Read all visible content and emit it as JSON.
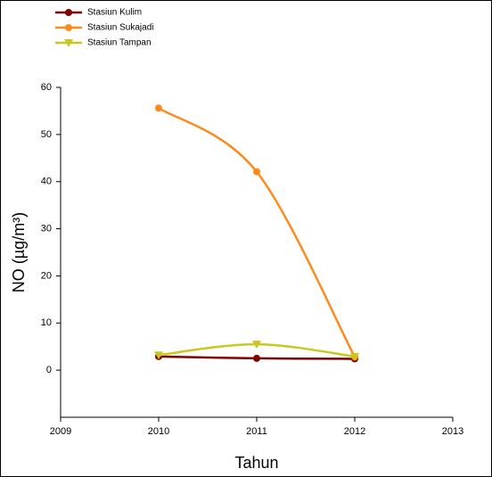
{
  "chart_data": {
    "type": "line",
    "y_label": "NO (µg/m³)",
    "x_label": "Tahun",
    "x": [
      2010,
      2011,
      2012
    ],
    "series": [
      {
        "name": "Stasiun Kulim",
        "color": "#800000",
        "marker": "circle",
        "values": [
          2.9,
          2.5,
          2.4
        ]
      },
      {
        "name": "Stasiun Sukajadi",
        "color": "#ff8a1c",
        "marker": "circle",
        "values": [
          55.6,
          42.1,
          2.8
        ]
      },
      {
        "name": "Stasiun Tampan",
        "color": "#c8c81e",
        "marker": "triangle-down",
        "values": [
          3.2,
          5.5,
          2.9
        ]
      }
    ],
    "xlim": [
      2009,
      2013
    ],
    "xticks": [
      2009,
      2010,
      2011,
      2012,
      2013
    ],
    "ylim": [
      -10,
      60
    ],
    "yticks": [
      0,
      10,
      20,
      30,
      40,
      50,
      60
    ],
    "smooth": true,
    "legend": "top-left"
  }
}
